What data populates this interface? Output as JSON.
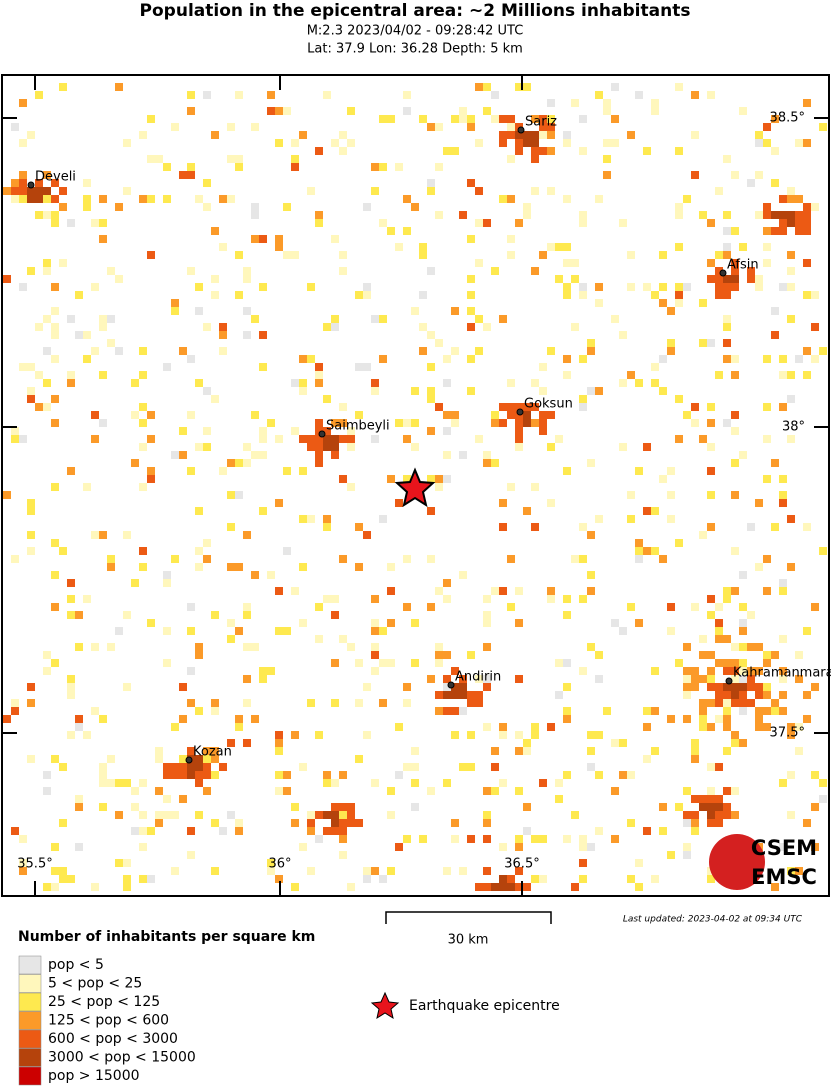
{
  "header": {
    "title": "Population in the epicentral area: ~2 Millions inhabitants",
    "line1": "M:2.3 2023/04/02 - 09:28:42 UTC",
    "line2": "Lat: 37.9 Lon: 36.28 Depth: 5 km"
  },
  "map": {
    "cities": [
      {
        "label": "Sariz"
      },
      {
        "label": "Develi"
      },
      {
        "label": "Afsin"
      },
      {
        "label": "Goksun"
      },
      {
        "label": "Saimbeyli"
      },
      {
        "label": "Andirin"
      },
      {
        "label": "Kahramanmaras"
      },
      {
        "label": "Kozan"
      }
    ],
    "lon_labels": [
      "35.5°",
      "36°",
      "36.5°"
    ],
    "lat_labels": [
      "38.5°",
      "38°",
      "37.5°"
    ],
    "logo": {
      "top": "CSEM",
      "bottom": "EMSC"
    }
  },
  "scale": {
    "label": "30 km"
  },
  "updated": "Last updated: 2023-04-02 at 09:34 UTC",
  "legend": {
    "title": "Number of inhabitants per square km",
    "items": [
      {
        "label": "pop < 5",
        "color": "#e6e6e6"
      },
      {
        "label": "5 < pop < 25",
        "color": "#fff7bc"
      },
      {
        "label": "25 < pop < 125",
        "color": "#fee94f"
      },
      {
        "label": "125 < pop < 600",
        "color": "#fb9a29"
      },
      {
        "label": "600 < pop < 3000",
        "color": "#ec5a14"
      },
      {
        "label": "3000 < pop < 15000",
        "color": "#b5430c"
      },
      {
        "label": "pop > 15000",
        "color": "#cc0000"
      }
    ],
    "epicentre": "Earthquake epicentre"
  }
}
